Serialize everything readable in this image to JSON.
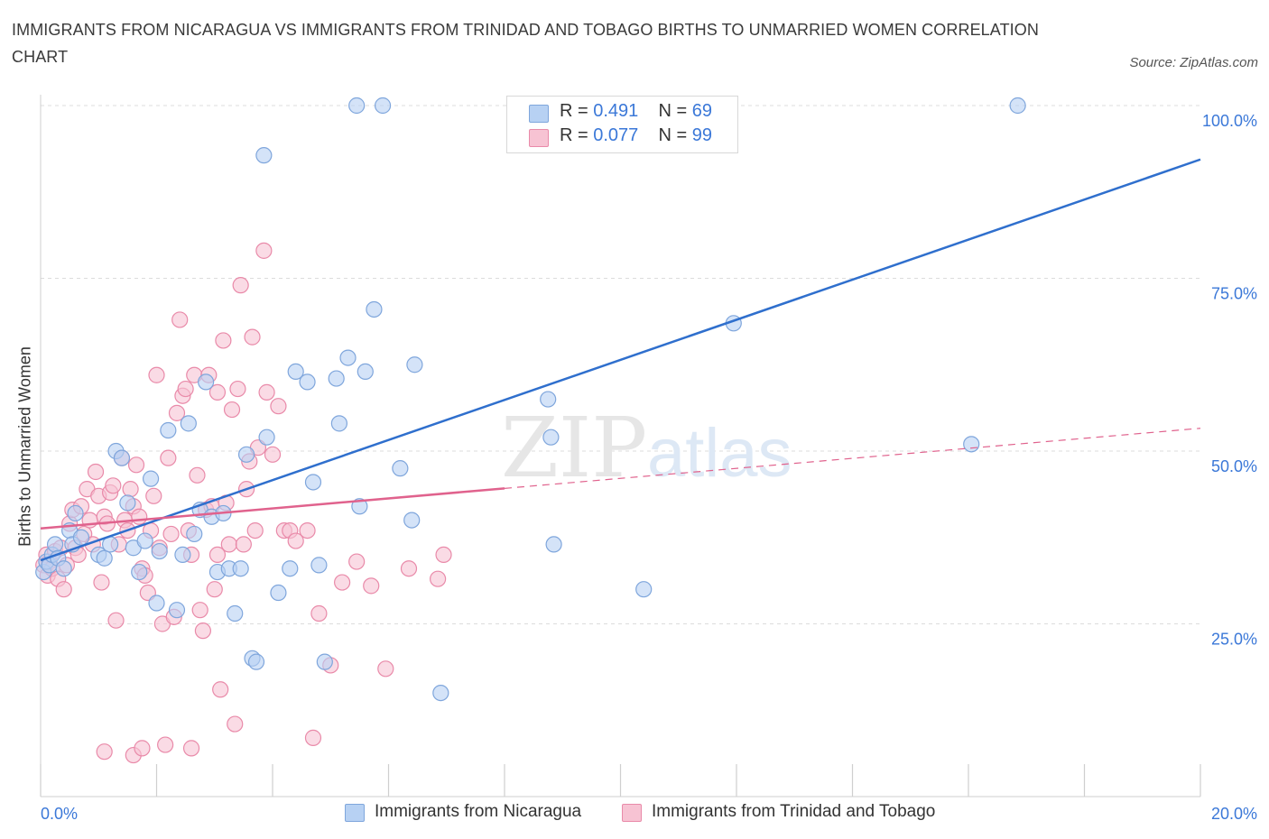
{
  "title": "IMMIGRANTS FROM NICARAGUA VS IMMIGRANTS FROM TRINIDAD AND TOBAGO BIRTHS TO UNMARRIED WOMEN CORRELATION CHART",
  "source": "Source: ZipAtlas.com",
  "watermark": {
    "zip": "ZIP",
    "atlas": "atlas"
  },
  "legend_top": [
    {
      "r_label": "R = ",
      "r_value": "0.491",
      "n_label": "N = ",
      "n_value": "69"
    },
    {
      "r_label": "R = ",
      "r_value": "0.077",
      "n_label": "N = ",
      "n_value": "99"
    }
  ],
  "legend_bottom": [
    "Immigrants from Nicaragua",
    "Immigrants from Trinidad and Tobago"
  ],
  "colors": {
    "blue_fill": "#b7d1f3",
    "blue_stroke": "#7fa6dc",
    "blue_line": "#2f6fcd",
    "pink_fill": "#f7c3d3",
    "pink_stroke": "#e98aa9",
    "pink_line": "#e0628d",
    "tick_label": "#3b78d8",
    "grid": "#dcdcdc"
  },
  "chart_data": {
    "type": "scatter",
    "title": "IMMIGRANTS FROM NICARAGUA VS IMMIGRANTS FROM TRINIDAD AND TOBAGO BIRTHS TO UNMARRIED WOMEN CORRELATION CHART",
    "xlabel": "",
    "ylabel": "Births to Unmarried Women",
    "xlim": [
      0,
      20
    ],
    "ylim": [
      0,
      100
    ],
    "x_tick_labels": [
      "0.0%",
      "20.0%"
    ],
    "y_ticks": [
      25,
      50,
      75,
      100
    ],
    "y_tick_labels": [
      "25.0%",
      "50.0%",
      "75.0%",
      "100.0%"
    ],
    "grid": true,
    "legend_position": "bottom",
    "series": [
      {
        "name": "Immigrants from Nicaragua",
        "color": "#b7d1f3",
        "trend": {
          "x": [
            0,
            20
          ],
          "y": [
            34.2,
            92.2
          ],
          "dashed_from": null
        },
        "points": [
          [
            0.05,
            32.5
          ],
          [
            0.1,
            34.0
          ],
          [
            0.15,
            33.5
          ],
          [
            0.2,
            35.0
          ],
          [
            0.25,
            36.5
          ],
          [
            0.3,
            34.5
          ],
          [
            0.4,
            33.0
          ],
          [
            0.5,
            38.5
          ],
          [
            0.55,
            36.5
          ],
          [
            0.6,
            41.0
          ],
          [
            0.7,
            37.5
          ],
          [
            1.0,
            35.0
          ],
          [
            1.1,
            34.5
          ],
          [
            1.2,
            36.5
          ],
          [
            1.3,
            50.0
          ],
          [
            1.4,
            49.0
          ],
          [
            1.5,
            42.5
          ],
          [
            1.6,
            36.0
          ],
          [
            1.7,
            32.5
          ],
          [
            1.8,
            37.0
          ],
          [
            1.9,
            46.0
          ],
          [
            2.0,
            28.0
          ],
          [
            2.05,
            35.5
          ],
          [
            2.2,
            53.0
          ],
          [
            2.35,
            27.0
          ],
          [
            2.45,
            35.0
          ],
          [
            2.55,
            54.0
          ],
          [
            2.65,
            38.0
          ],
          [
            2.75,
            41.5
          ],
          [
            2.85,
            60.0
          ],
          [
            2.95,
            40.5
          ],
          [
            3.05,
            32.5
          ],
          [
            3.15,
            41.0
          ],
          [
            3.25,
            33.0
          ],
          [
            3.35,
            26.5
          ],
          [
            3.45,
            33.0
          ],
          [
            3.55,
            49.5
          ],
          [
            3.65,
            20.0
          ],
          [
            3.72,
            19.5
          ],
          [
            3.85,
            92.8
          ],
          [
            3.9,
            52.0
          ],
          [
            4.1,
            29.5
          ],
          [
            4.3,
            33.0
          ],
          [
            4.4,
            61.5
          ],
          [
            4.6,
            60.0
          ],
          [
            4.7,
            45.5
          ],
          [
            4.8,
            33.5
          ],
          [
            4.9,
            19.5
          ],
          [
            5.1,
            60.5
          ],
          [
            5.15,
            54.0
          ],
          [
            5.3,
            63.5
          ],
          [
            5.45,
            100.0
          ],
          [
            5.5,
            42.0
          ],
          [
            5.6,
            61.5
          ],
          [
            5.75,
            70.5
          ],
          [
            5.9,
            100.0
          ],
          [
            6.2,
            47.5
          ],
          [
            6.4,
            40.0
          ],
          [
            6.45,
            62.5
          ],
          [
            6.9,
            15.0
          ],
          [
            8.75,
            57.5
          ],
          [
            8.8,
            52.0
          ],
          [
            8.85,
            36.5
          ],
          [
            10.4,
            30.0
          ],
          [
            11.95,
            68.5
          ],
          [
            16.05,
            51.0
          ],
          [
            16.85,
            100.0
          ],
          [
            9.3,
            100.0
          ],
          [
            9.6,
            100.0
          ]
        ]
      },
      {
        "name": "Immigrants from Trinidad and Tobago",
        "color": "#f7c3d3",
        "trend": {
          "x": [
            0,
            20
          ],
          "y": [
            38.8,
            53.3
          ],
          "dashed_from": 8.0
        },
        "points": [
          [
            0.05,
            33.5
          ],
          [
            0.1,
            35.0
          ],
          [
            0.12,
            32.0
          ],
          [
            0.15,
            34.0
          ],
          [
            0.2,
            33.0
          ],
          [
            0.25,
            35.5
          ],
          [
            0.3,
            31.5
          ],
          [
            0.35,
            36.0
          ],
          [
            0.4,
            30.0
          ],
          [
            0.45,
            33.5
          ],
          [
            0.5,
            39.5
          ],
          [
            0.55,
            41.5
          ],
          [
            0.6,
            36.0
          ],
          [
            0.65,
            35.0
          ],
          [
            0.7,
            42.0
          ],
          [
            0.75,
            38.0
          ],
          [
            0.8,
            44.5
          ],
          [
            0.85,
            40.0
          ],
          [
            0.9,
            36.5
          ],
          [
            0.95,
            47.0
          ],
          [
            1.0,
            43.5
          ],
          [
            1.05,
            31.0
          ],
          [
            1.1,
            40.5
          ],
          [
            1.15,
            39.5
          ],
          [
            1.2,
            44.0
          ],
          [
            1.25,
            45.0
          ],
          [
            1.3,
            25.5
          ],
          [
            1.35,
            36.5
          ],
          [
            1.4,
            49.0
          ],
          [
            1.45,
            40.0
          ],
          [
            1.5,
            38.5
          ],
          [
            1.55,
            44.5
          ],
          [
            1.6,
            42.0
          ],
          [
            1.65,
            48.0
          ],
          [
            1.7,
            40.5
          ],
          [
            1.75,
            33.0
          ],
          [
            1.8,
            32.0
          ],
          [
            1.85,
            29.5
          ],
          [
            1.9,
            38.5
          ],
          [
            1.95,
            43.5
          ],
          [
            2.0,
            61.0
          ],
          [
            2.05,
            36.0
          ],
          [
            2.1,
            25.0
          ],
          [
            2.15,
            7.5
          ],
          [
            2.2,
            49.0
          ],
          [
            2.25,
            38.0
          ],
          [
            2.3,
            26.0
          ],
          [
            2.35,
            55.5
          ],
          [
            2.4,
            69.0
          ],
          [
            2.45,
            58.0
          ],
          [
            2.5,
            59.0
          ],
          [
            2.55,
            38.5
          ],
          [
            2.6,
            35.0
          ],
          [
            2.65,
            61.0
          ],
          [
            2.7,
            46.5
          ],
          [
            2.75,
            27.0
          ],
          [
            2.8,
            24.0
          ],
          [
            2.85,
            41.5
          ],
          [
            2.9,
            61.0
          ],
          [
            2.95,
            42.0
          ],
          [
            3.0,
            30.0
          ],
          [
            3.05,
            58.5
          ],
          [
            3.1,
            15.5
          ],
          [
            3.15,
            66.0
          ],
          [
            3.2,
            42.5
          ],
          [
            3.25,
            36.5
          ],
          [
            3.3,
            56.0
          ],
          [
            3.35,
            10.5
          ],
          [
            3.4,
            59.0
          ],
          [
            3.45,
            74.0
          ],
          [
            3.5,
            36.5
          ],
          [
            3.55,
            44.5
          ],
          [
            3.6,
            48.5
          ],
          [
            3.65,
            66.5
          ],
          [
            3.7,
            38.5
          ],
          [
            3.75,
            50.5
          ],
          [
            3.85,
            79.0
          ],
          [
            3.9,
            58.5
          ],
          [
            4.0,
            49.5
          ],
          [
            4.1,
            56.5
          ],
          [
            4.2,
            38.5
          ],
          [
            4.3,
            38.5
          ],
          [
            4.4,
            37.0
          ],
          [
            4.6,
            38.5
          ],
          [
            4.7,
            8.5
          ],
          [
            4.8,
            26.5
          ],
          [
            5.0,
            19.0
          ],
          [
            5.2,
            31.0
          ],
          [
            5.45,
            34.0
          ],
          [
            5.7,
            30.5
          ],
          [
            5.95,
            18.5
          ],
          [
            6.35,
            33.0
          ],
          [
            6.85,
            31.5
          ],
          [
            6.95,
            35.0
          ],
          [
            1.1,
            6.5
          ],
          [
            1.6,
            6.0
          ],
          [
            1.75,
            7.0
          ],
          [
            2.6,
            7.0
          ],
          [
            3.05,
            35.0
          ]
        ]
      }
    ]
  }
}
